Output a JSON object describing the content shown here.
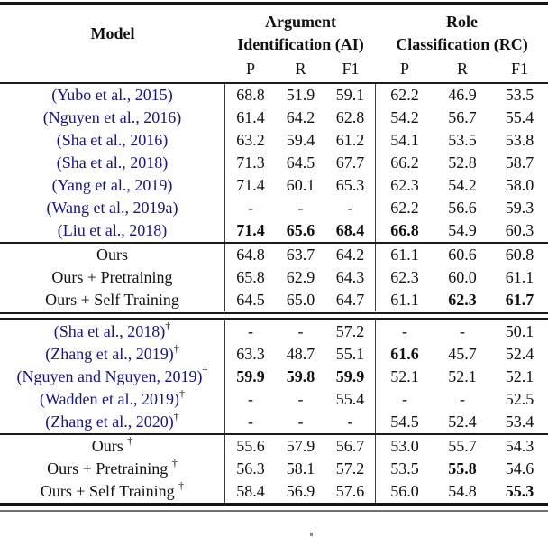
{
  "table": {
    "header": {
      "model_label": "Model",
      "groups": [
        {
          "line1": "Argument",
          "line2": "Identification (AI)"
        },
        {
          "line1": "Role",
          "line2": "Classification (RC)"
        }
      ],
      "subcolumns": [
        "P",
        "R",
        "F1"
      ]
    },
    "symbols": {
      "dagger": "†",
      "missing": "-"
    },
    "sections": [
      {
        "name": "prior-work",
        "rows": [
          {
            "model": "(Yubo et al., 2015)",
            "link": true,
            "dagger": false,
            "cells": [
              {
                "v": "68.8"
              },
              {
                "v": "51.9"
              },
              {
                "v": "59.1"
              },
              {
                "v": "62.2"
              },
              {
                "v": "46.9"
              },
              {
                "v": "53.5"
              }
            ]
          },
          {
            "model": "(Nguyen et al., 2016)",
            "link": true,
            "dagger": false,
            "cells": [
              {
                "v": "61.4"
              },
              {
                "v": "64.2"
              },
              {
                "v": "62.8"
              },
              {
                "v": "54.2"
              },
              {
                "v": "56.7"
              },
              {
                "v": "55.4"
              }
            ]
          },
          {
            "model": "(Sha et al., 2016)",
            "link": true,
            "dagger": false,
            "cells": [
              {
                "v": "63.2"
              },
              {
                "v": "59.4"
              },
              {
                "v": "61.2"
              },
              {
                "v": "54.1"
              },
              {
                "v": "53.5"
              },
              {
                "v": "53.8"
              }
            ]
          },
          {
            "model": "(Sha et al., 2018)",
            "link": true,
            "dagger": false,
            "cells": [
              {
                "v": "71.3"
              },
              {
                "v": "64.5"
              },
              {
                "v": "67.7"
              },
              {
                "v": "66.2"
              },
              {
                "v": "52.8"
              },
              {
                "v": "58.7"
              }
            ]
          },
          {
            "model": "(Yang et al., 2019)",
            "link": true,
            "dagger": false,
            "cells": [
              {
                "v": "71.4"
              },
              {
                "v": "60.1"
              },
              {
                "v": "65.3"
              },
              {
                "v": "62.3"
              },
              {
                "v": "54.2"
              },
              {
                "v": "58.0"
              }
            ]
          },
          {
            "model": "(Wang et al., 2019a)",
            "link": true,
            "dagger": false,
            "cells": [
              {
                "v": "-"
              },
              {
                "v": "-"
              },
              {
                "v": "-"
              },
              {
                "v": "62.2"
              },
              {
                "v": "56.6"
              },
              {
                "v": "59.3"
              }
            ]
          },
          {
            "model": "(Liu et al., 2018)",
            "link": true,
            "dagger": false,
            "cells": [
              {
                "v": "71.4",
                "b": true
              },
              {
                "v": "65.6",
                "b": true
              },
              {
                "v": "68.4",
                "b": true
              },
              {
                "v": "66.8",
                "b": true
              },
              {
                "v": "54.9"
              },
              {
                "v": "60.3"
              }
            ]
          }
        ]
      },
      {
        "name": "ours",
        "rows": [
          {
            "model": "Ours",
            "link": false,
            "dagger": false,
            "cells": [
              {
                "v": "64.8"
              },
              {
                "v": "63.7"
              },
              {
                "v": "64.2"
              },
              {
                "v": "61.1"
              },
              {
                "v": "60.6"
              },
              {
                "v": "60.8"
              }
            ]
          },
          {
            "model": "Ours + Pretraining",
            "link": false,
            "dagger": false,
            "cells": [
              {
                "v": "65.8"
              },
              {
                "v": "62.9"
              },
              {
                "v": "64.3"
              },
              {
                "v": "62.3"
              },
              {
                "v": "60.0"
              },
              {
                "v": "61.1"
              }
            ]
          },
          {
            "model": "Ours + Self Training",
            "link": false,
            "dagger": false,
            "cells": [
              {
                "v": "64.5"
              },
              {
                "v": "65.0"
              },
              {
                "v": "64.7"
              },
              {
                "v": "61.1"
              },
              {
                "v": "62.3",
                "b": true
              },
              {
                "v": "61.7",
                "b": true
              }
            ]
          }
        ]
      },
      {
        "name": "prior-work-dagger",
        "rows": [
          {
            "model": "(Sha et al., 2018)",
            "link": true,
            "dagger": true,
            "dagger_spaced": false,
            "cells": [
              {
                "v": "-"
              },
              {
                "v": "-"
              },
              {
                "v": "57.2"
              },
              {
                "v": "-"
              },
              {
                "v": "-"
              },
              {
                "v": "50.1"
              }
            ]
          },
          {
            "model": "(Zhang et al., 2019)",
            "link": true,
            "dagger": true,
            "dagger_spaced": false,
            "cells": [
              {
                "v": "63.3"
              },
              {
                "v": "48.7"
              },
              {
                "v": "55.1"
              },
              {
                "v": "61.6",
                "b": true
              },
              {
                "v": "45.7"
              },
              {
                "v": "52.4"
              }
            ]
          },
          {
            "model": "(Nguyen and Nguyen, 2019)",
            "link": true,
            "dagger": true,
            "dagger_spaced": false,
            "cells": [
              {
                "v": "59.9",
                "b": true
              },
              {
                "v": "59.8",
                "b": true
              },
              {
                "v": "59.9",
                "b": true
              },
              {
                "v": "52.1"
              },
              {
                "v": "52.1"
              },
              {
                "v": "52.1"
              }
            ]
          },
          {
            "model": "(Wadden et al., 2019)",
            "link": true,
            "dagger": true,
            "dagger_spaced": false,
            "cells": [
              {
                "v": "-"
              },
              {
                "v": "-"
              },
              {
                "v": "55.4"
              },
              {
                "v": "-"
              },
              {
                "v": "-"
              },
              {
                "v": "52.5"
              }
            ]
          },
          {
            "model": "(Zhang et al., 2020)",
            "link": true,
            "dagger": true,
            "dagger_spaced": false,
            "cells": [
              {
                "v": "-"
              },
              {
                "v": "-"
              },
              {
                "v": "-"
              },
              {
                "v": "54.5"
              },
              {
                "v": "52.4"
              },
              {
                "v": "53.4"
              }
            ]
          }
        ]
      },
      {
        "name": "ours-dagger",
        "rows": [
          {
            "model": "Ours",
            "link": false,
            "dagger": true,
            "dagger_spaced": true,
            "cells": [
              {
                "v": "55.6"
              },
              {
                "v": "57.9"
              },
              {
                "v": "56.7"
              },
              {
                "v": "53.0"
              },
              {
                "v": "55.7"
              },
              {
                "v": "54.3"
              }
            ]
          },
          {
            "model": "Ours + Pretraining",
            "link": false,
            "dagger": true,
            "dagger_spaced": true,
            "cells": [
              {
                "v": "56.3"
              },
              {
                "v": "58.1"
              },
              {
                "v": "57.2"
              },
              {
                "v": "53.5"
              },
              {
                "v": "55.8",
                "b": true
              },
              {
                "v": "54.6"
              }
            ]
          },
          {
            "model": "Ours + Self Training",
            "link": false,
            "dagger": true,
            "dagger_spaced": true,
            "cells": [
              {
                "v": "58.4"
              },
              {
                "v": "56.9"
              },
              {
                "v": "57.6"
              },
              {
                "v": "56.0"
              },
              {
                "v": "54.8"
              },
              {
                "v": "55.3",
                "b": true
              }
            ]
          }
        ]
      }
    ]
  },
  "colors": {
    "citation_link": "#14148C",
    "text": "#111111",
    "rule": "#1c1c1c"
  }
}
